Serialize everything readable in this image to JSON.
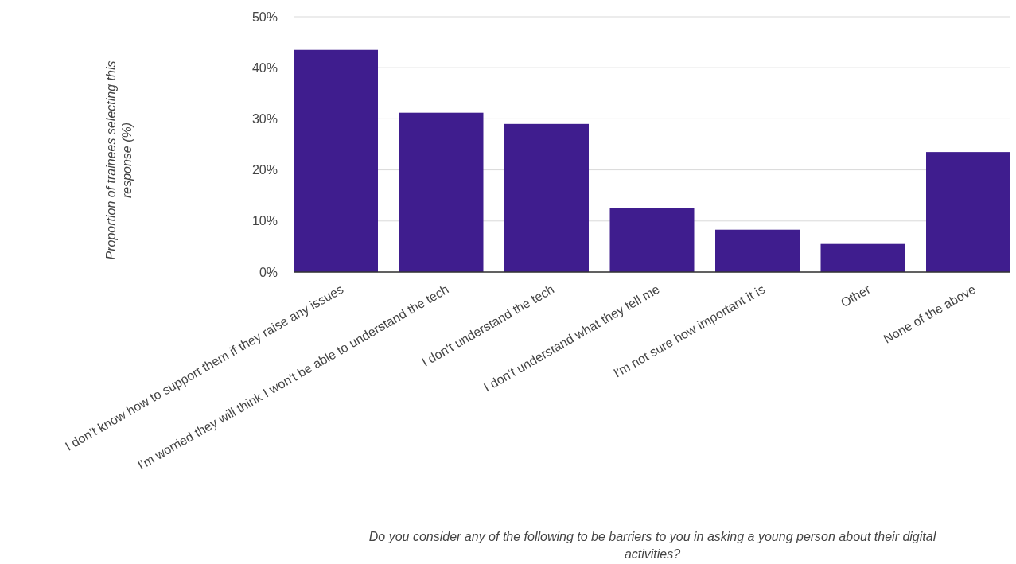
{
  "chart_data": {
    "type": "bar",
    "categories": [
      "I don't know how to support them if they raise any issues",
      "I'm worried they will think I won't be able to understand the tech",
      "I don't understand the tech",
      "I don't understand what they tell me",
      "I'm not sure how important it is",
      "Other",
      "None of the above"
    ],
    "values": [
      43.5,
      31.2,
      29.0,
      12.5,
      8.3,
      5.5,
      23.5
    ],
    "color": "#3f1d8e",
    "ylabel": "Proportion of trainees selecting this response (%)",
    "xlabel": "Do you consider any of the following to be barriers to you in asking a young person about their digital activities?",
    "ylim": [
      0,
      50
    ],
    "yticks": [
      {
        "value": 0,
        "label": "0%"
      },
      {
        "value": 10,
        "label": "10%"
      },
      {
        "value": 20,
        "label": "20%"
      },
      {
        "value": 30,
        "label": "30%"
      },
      {
        "value": 40,
        "label": "40%"
      },
      {
        "value": 50,
        "label": "50%"
      }
    ],
    "grid": true
  }
}
